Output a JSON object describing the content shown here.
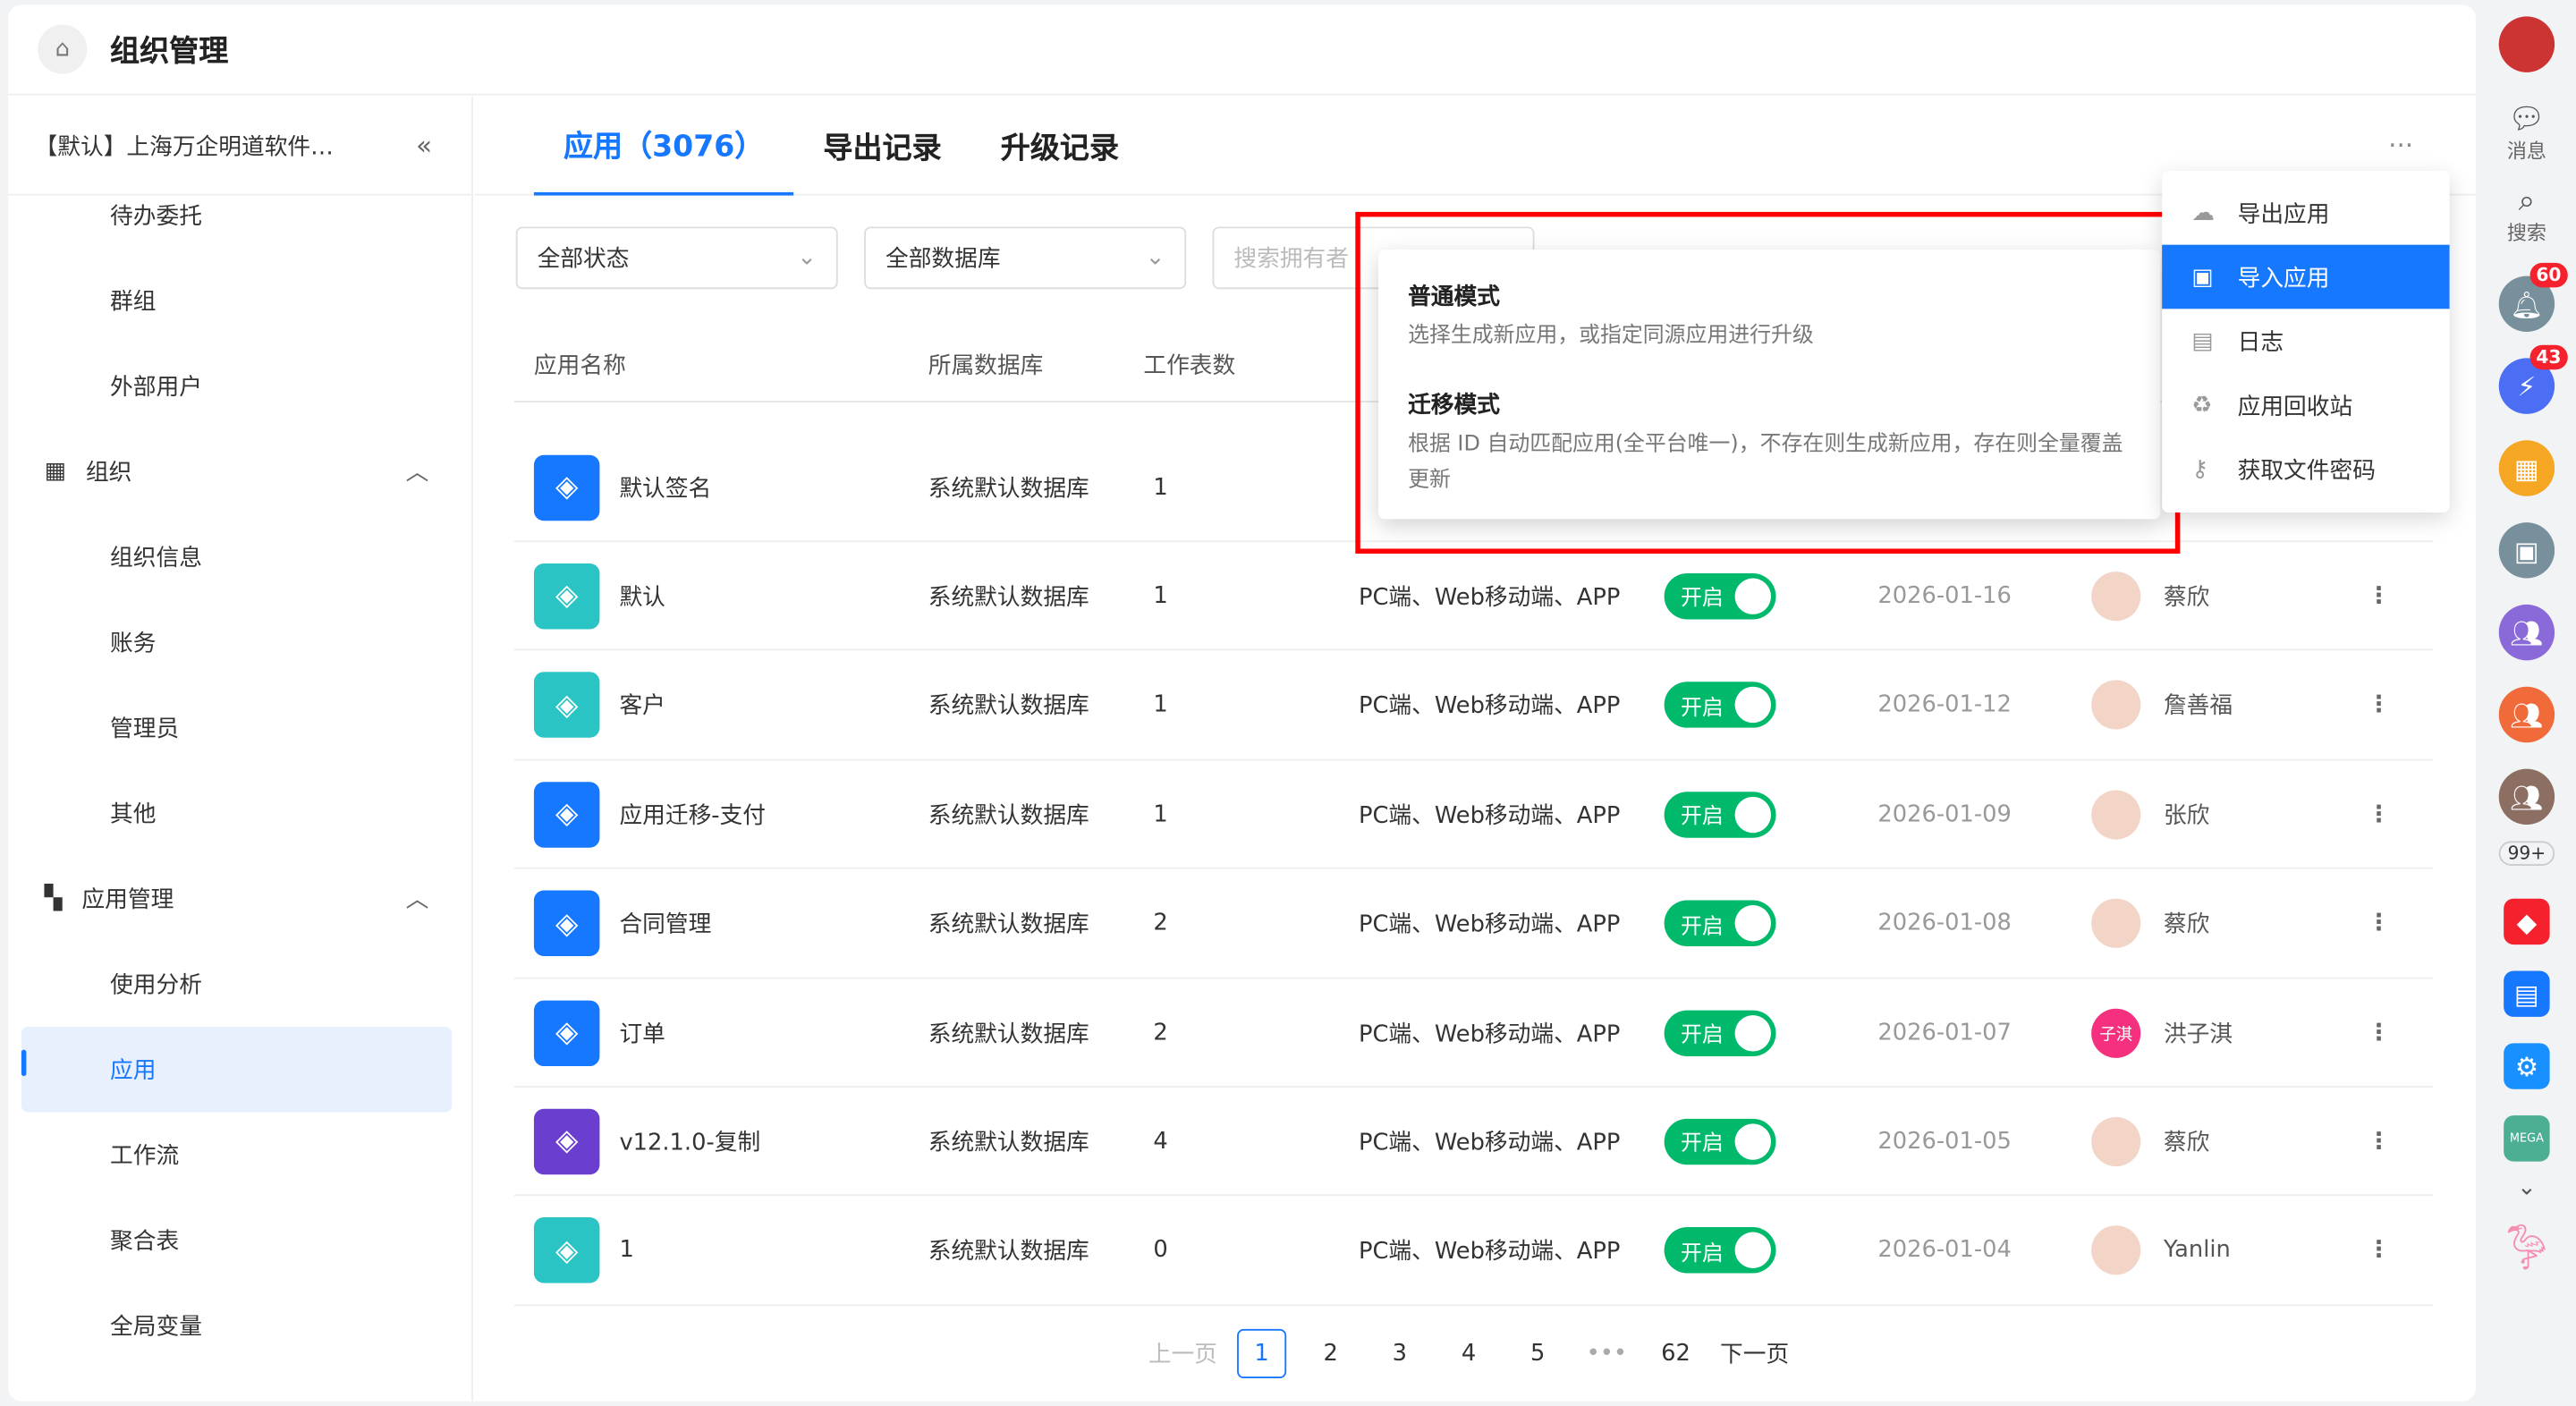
{
  "header": {
    "title": "组织管理"
  },
  "sidebar": {
    "org": "【默认】上海万企明道软件…",
    "items": [
      {
        "label": "待办委托",
        "type": "sub"
      },
      {
        "label": "群组",
        "type": "sub"
      },
      {
        "label": "外部用户",
        "type": "sub"
      },
      {
        "label": "组织",
        "type": "group"
      },
      {
        "label": "组织信息",
        "type": "sub"
      },
      {
        "label": "账务",
        "type": "sub"
      },
      {
        "label": "管理员",
        "type": "sub"
      },
      {
        "label": "其他",
        "type": "sub"
      },
      {
        "label": "应用管理",
        "type": "group"
      },
      {
        "label": "使用分析",
        "type": "sub"
      },
      {
        "label": "应用",
        "type": "sub",
        "active": true
      },
      {
        "label": "工作流",
        "type": "sub"
      },
      {
        "label": "聚合表",
        "type": "sub"
      },
      {
        "label": "全局变量",
        "type": "sub"
      }
    ]
  },
  "tabs": [
    {
      "label": "应用（3076）",
      "active": true
    },
    {
      "label": "导出记录"
    },
    {
      "label": "升级记录"
    }
  ],
  "filters": {
    "status": "全部状态",
    "database": "全部数据库",
    "owner_placeholder": "搜索拥有者"
  },
  "columns": [
    "应用名称",
    "所属数据库",
    "工作表数"
  ],
  "rows": [
    {
      "name": "默认签名",
      "db": "系统默认数据库",
      "sheets": "1",
      "color": "#1677ff"
    },
    {
      "name": "默认",
      "db": "系统默认数据库",
      "sheets": "1",
      "platform": "PC端、Web移动端、APP",
      "status": "开启",
      "date": "2026-01-16",
      "owner": "蔡欣",
      "color": "#2bc4c4"
    },
    {
      "name": "客户",
      "db": "系统默认数据库",
      "sheets": "1",
      "platform": "PC端、Web移动端、APP",
      "status": "开启",
      "date": "2026-01-12",
      "owner": "詹善福",
      "color": "#2bc4c4"
    },
    {
      "name": "应用迁移-支付",
      "db": "系统默认数据库",
      "sheets": "1",
      "platform": "PC端、Web移动端、APP",
      "status": "开启",
      "date": "2026-01-09",
      "owner": "张欣",
      "color": "#1677ff"
    },
    {
      "name": "合同管理",
      "db": "系统默认数据库",
      "sheets": "2",
      "platform": "PC端、Web移动端、APP",
      "status": "开启",
      "date": "2026-01-08",
      "owner": "蔡欣",
      "color": "#1677ff"
    },
    {
      "name": "订单",
      "db": "系统默认数据库",
      "sheets": "2",
      "platform": "PC端、Web移动端、APP",
      "status": "开启",
      "date": "2026-01-07",
      "owner": "洪子淇",
      "owner_avatar": "子淇",
      "color": "#1677ff"
    },
    {
      "name": "v12.1.0-复制",
      "db": "系统默认数据库",
      "sheets": "4",
      "platform": "PC端、Web移动端、APP",
      "status": "开启",
      "date": "2026-01-05",
      "owner": "蔡欣",
      "color": "#6a3fd0"
    },
    {
      "name": "1",
      "db": "系统默认数据库",
      "sheets": "0",
      "platform": "PC端、Web移动端、APP",
      "status": "开启",
      "date": "2026-01-04",
      "owner": "Yanlin",
      "color": "#2bc4c4"
    }
  ],
  "pagination": {
    "prev": "上一页",
    "pages": [
      "1",
      "2",
      "3",
      "4",
      "5",
      "•••",
      "62"
    ],
    "current": "1",
    "next": "下一页"
  },
  "import_popup": {
    "normal_title": "普通模式",
    "normal_desc": "选择生成新应用，或指定同源应用进行升级",
    "migrate_title": "迁移模式",
    "migrate_desc": "根据 ID 自动匹配应用(全平台唯一)，不存在则生成新应用，存在则全量覆盖更新"
  },
  "more_menu": [
    {
      "label": "导出应用",
      "icon": "cloud-download-icon"
    },
    {
      "label": "导入应用",
      "icon": "import-icon",
      "highlighted": true
    },
    {
      "label": "日志",
      "icon": "log-icon"
    },
    {
      "label": "应用回收站",
      "icon": "recycle-bin-icon"
    },
    {
      "label": "获取文件密码",
      "icon": "key-icon"
    }
  ],
  "rail": {
    "messages": "消息",
    "search": "搜索",
    "notif_badge": "60",
    "flash_badge": "43",
    "more_badge": "99+"
  }
}
